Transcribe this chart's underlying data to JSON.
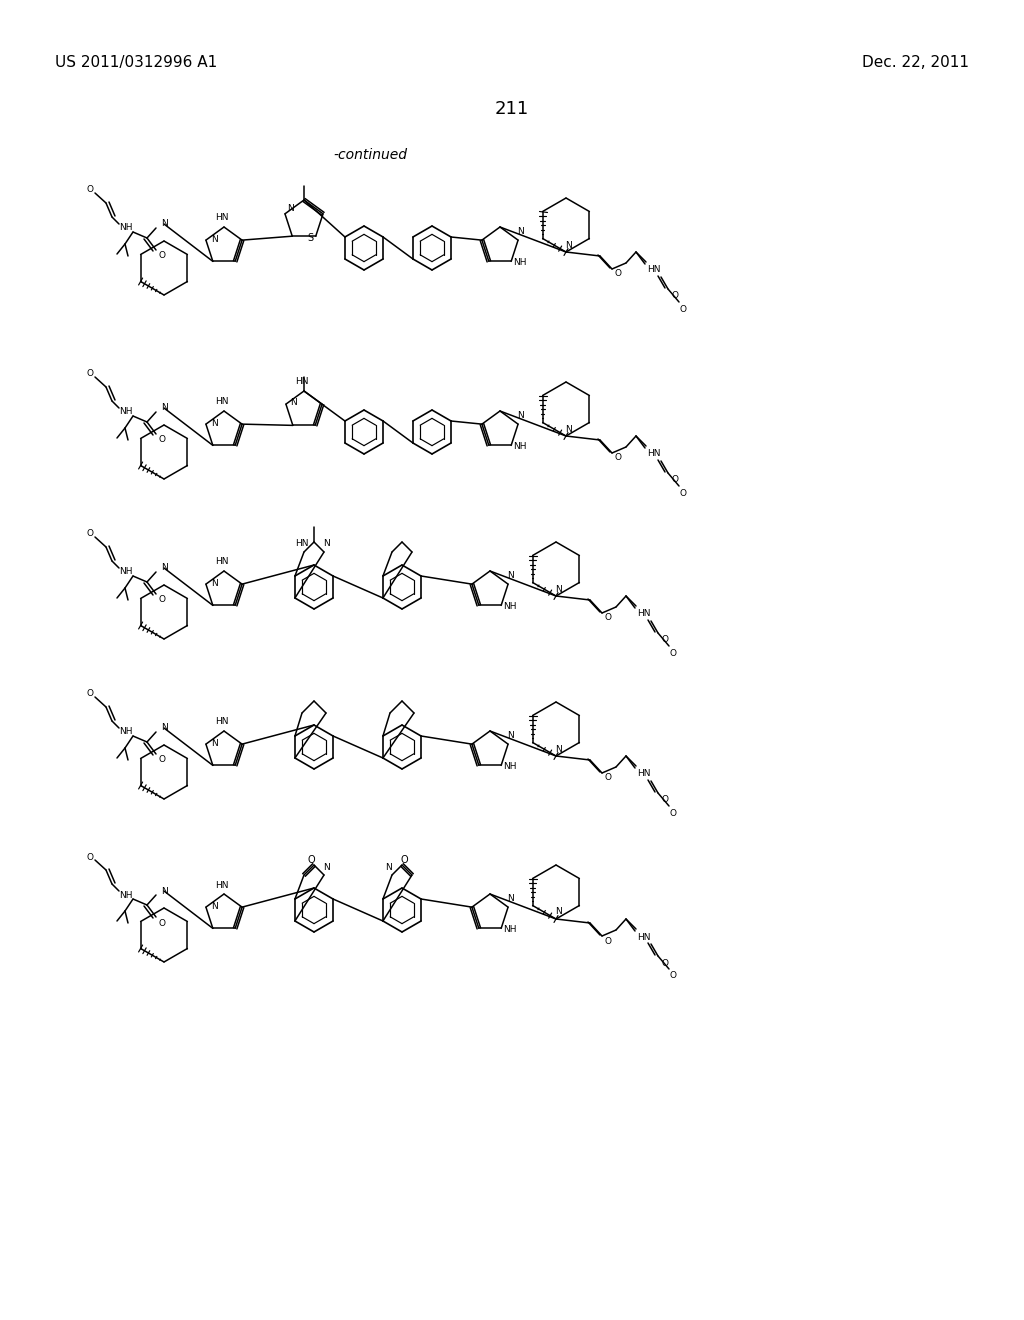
{
  "background_color": "#ffffff",
  "header_left": "US 2011/0312996 A1",
  "header_right": "Dec. 22, 2011",
  "page_number": "211",
  "continued_text": "-continued"
}
